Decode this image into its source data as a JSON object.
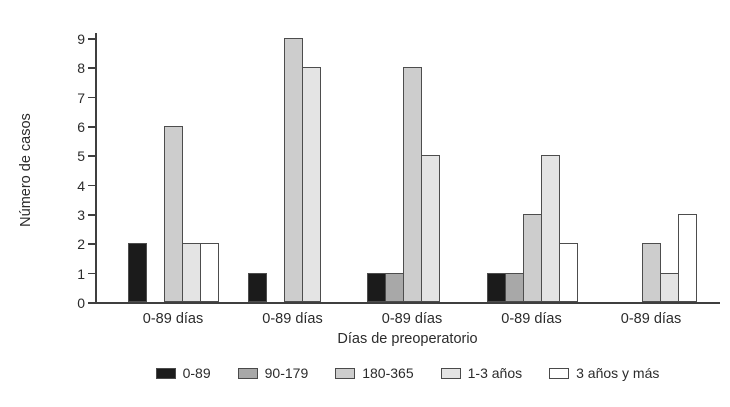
{
  "chart_data": {
    "type": "bar",
    "title": "",
    "ylabel": "Número de casos",
    "xlabel": "Días de preoperatorio",
    "ylim": [
      0,
      9
    ],
    "yticks": [
      0,
      1,
      2,
      3,
      4,
      5,
      6,
      7,
      8,
      9
    ],
    "grid": false,
    "legend_position": "bottom",
    "categories": [
      "0-89 días",
      "0-89 días",
      "0-89 días",
      "0-89 días",
      "0-89 días"
    ],
    "series": [
      {
        "name": "0-89",
        "color": "#1b1b1b",
        "values": [
          2,
          1,
          1,
          1,
          0
        ]
      },
      {
        "name": "90-179",
        "color": "#a8a8a8",
        "values": [
          0,
          0,
          1,
          1,
          0
        ]
      },
      {
        "name": "180-365",
        "color": "#cdcdcd",
        "values": [
          6,
          9,
          8,
          3,
          2
        ]
      },
      {
        "name": "1-3 años",
        "color": "#e4e4e4",
        "values": [
          2,
          8,
          5,
          5,
          1
        ]
      },
      {
        "name": "3 años y más",
        "color": "#ffffff",
        "values": [
          2,
          0,
          0,
          2,
          3
        ]
      }
    ],
    "bar_border_color": "#4d4d4d",
    "axis_color": "#3f3f3f"
  }
}
